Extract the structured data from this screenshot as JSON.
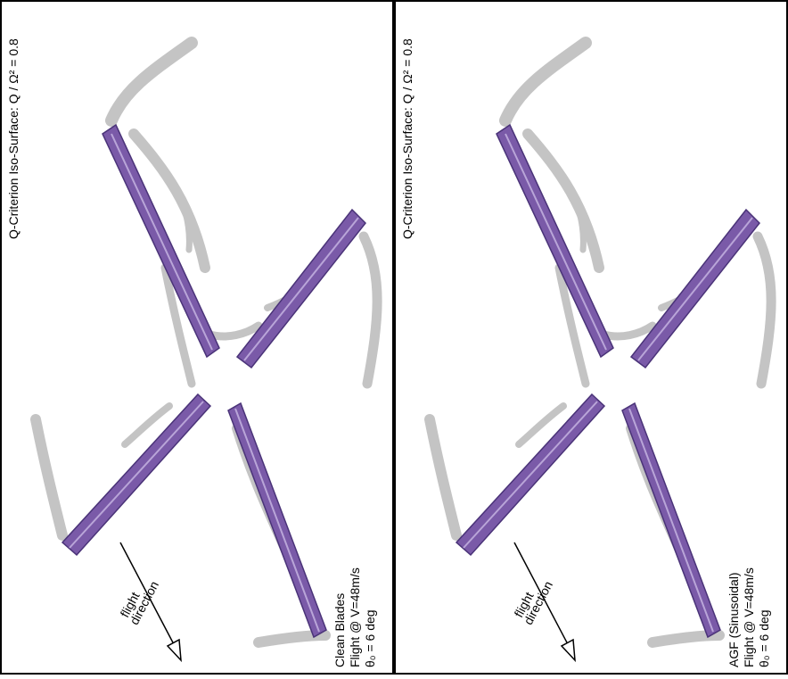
{
  "panels": [
    {
      "title": "Q-Criterion Iso-Surface: Q / Ω² = 0.8",
      "arrow_label": [
        "flight",
        "direction"
      ],
      "caption": [
        "Clean Blades",
        "Flight @ V=48m/s",
        "θ₀ = 6 deg"
      ]
    },
    {
      "title": "Q-Criterion Iso-Surface: Q / Ω² = 0.8",
      "arrow_label": [
        "flight",
        "direction"
      ],
      "caption": [
        "AGF (Sinusoidal)",
        "Flight @ V=48m/s",
        "θ₀ = 6 deg"
      ]
    }
  ]
}
